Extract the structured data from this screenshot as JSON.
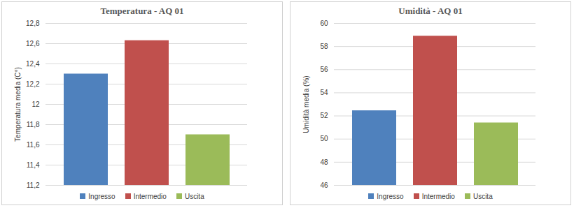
{
  "chart_data": [
    {
      "type": "bar",
      "title": "Temperatura - AQ 01",
      "y_label": "Temperatura media (C°)",
      "categories": [
        "Ingresso",
        "Intermedio",
        "Uscita"
      ],
      "values": [
        12.3,
        12.63,
        11.7
      ],
      "colors": [
        "#4f81bd",
        "#c0504d",
        "#9bbb59"
      ],
      "ylim": [
        11.2,
        12.8
      ],
      "yticks": [
        {
          "value": 11.2,
          "label": "11,2"
        },
        {
          "value": 11.4,
          "label": "11,4"
        },
        {
          "value": 11.6,
          "label": "11,6"
        },
        {
          "value": 11.8,
          "label": "11,8"
        },
        12,
        {
          "value": 12.2,
          "label": "12,2"
        },
        {
          "value": 12.4,
          "label": "12,4"
        },
        {
          "value": 12.6,
          "label": "12,6"
        },
        {
          "value": 12.8,
          "label": "12,8"
        }
      ],
      "grid": true,
      "legend": "bottom",
      "tick_labels": "y"
    },
    {
      "type": "bar",
      "title": "Umidità - AQ 01",
      "y_label": "Umidità media (%)",
      "categories": [
        "Ingresso",
        "Intermedio",
        "Uscita"
      ],
      "values": [
        52.45,
        58.9,
        51.4
      ],
      "colors": [
        "#4f81bd",
        "#c0504d",
        "#9bbb59"
      ],
      "ylim": [
        46,
        60
      ],
      "yticks": [
        46,
        48,
        50,
        52,
        54,
        56,
        58,
        60
      ],
      "grid": true,
      "legend": "bottom",
      "tick_labels": "y"
    }
  ]
}
